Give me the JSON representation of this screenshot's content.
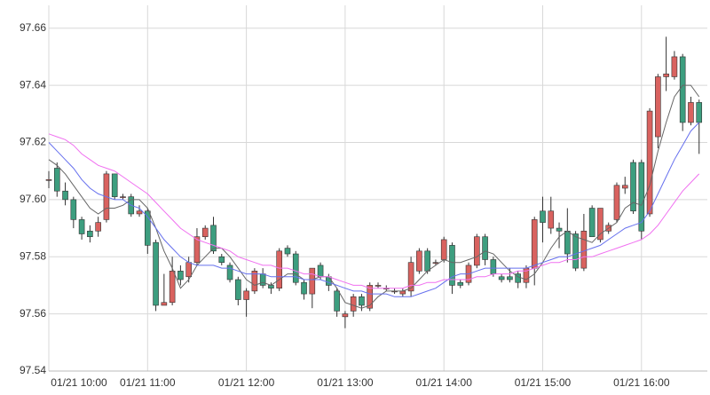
{
  "chart_data": {
    "type": "candlestick",
    "x": [
      "01/21 10:00",
      "01/21 10:05",
      "01/21 10:10",
      "01/21 10:15",
      "01/21 10:20",
      "01/21 10:25",
      "01/21 10:30",
      "01/21 10:35",
      "01/21 10:40",
      "01/21 10:45",
      "01/21 10:50",
      "01/21 10:55",
      "01/21 11:00",
      "01/21 11:05",
      "01/21 11:10",
      "01/21 11:15",
      "01/21 11:20",
      "01/21 11:25",
      "01/21 11:30",
      "01/21 11:35",
      "01/21 11:40",
      "01/21 11:45",
      "01/21 11:50",
      "01/21 11:55",
      "01/21 12:00",
      "01/21 12:05",
      "01/21 12:10",
      "01/21 12:15",
      "01/21 12:20",
      "01/21 12:25",
      "01/21 12:30",
      "01/21 12:35",
      "01/21 12:40",
      "01/21 12:45",
      "01/21 12:50",
      "01/21 12:55",
      "01/21 13:00",
      "01/21 13:05",
      "01/21 13:10",
      "01/21 13:15",
      "01/21 13:20",
      "01/21 13:25",
      "01/21 13:30",
      "01/21 13:35",
      "01/21 13:40",
      "01/21 13:45",
      "01/21 13:50",
      "01/21 13:55",
      "01/21 14:00",
      "01/21 14:05",
      "01/21 14:10",
      "01/21 14:15",
      "01/21 14:20",
      "01/21 14:25",
      "01/21 14:30",
      "01/21 14:35",
      "01/21 14:40",
      "01/21 14:45",
      "01/21 14:50",
      "01/21 14:55",
      "01/21 15:00",
      "01/21 15:05",
      "01/21 15:10",
      "01/21 15:15",
      "01/21 15:20",
      "01/21 15:25",
      "01/21 15:30",
      "01/21 15:35",
      "01/21 15:40",
      "01/21 15:45",
      "01/21 15:50",
      "01/21 15:55",
      "01/21 16:00",
      "01/21 16:05",
      "01/21 16:10",
      "01/21 16:15",
      "01/21 16:20",
      "01/21 16:25",
      "01/21 16:30",
      "01/21 16:35"
    ],
    "open": [
      97.607,
      97.611,
      97.603,
      97.6,
      97.593,
      97.589,
      97.589,
      97.593,
      97.609,
      97.601,
      97.601,
      97.595,
      97.596,
      97.585,
      97.563,
      97.564,
      97.575,
      97.573,
      97.578,
      97.587,
      97.591,
      97.58,
      97.577,
      97.572,
      97.565,
      97.568,
      97.574,
      97.57,
      97.569,
      97.583,
      97.581,
      97.571,
      97.567,
      97.577,
      97.573,
      97.568,
      97.559,
      97.561,
      97.566,
      97.562,
      97.57,
      97.569,
      97.568,
      97.567,
      97.568,
      97.575,
      97.582,
      97.578,
      97.579,
      97.584,
      97.571,
      97.571,
      97.577,
      97.587,
      97.579,
      97.573,
      97.573,
      97.574,
      97.571,
      97.576,
      97.596,
      97.59,
      97.59,
      97.589,
      97.588,
      97.576,
      97.597,
      97.586,
      97.589,
      97.593,
      97.604,
      97.613,
      97.613,
      97.595,
      97.622,
      97.643,
      97.643,
      97.65,
      97.627,
      97.634
    ],
    "high": [
      97.61,
      97.613,
      97.606,
      97.601,
      97.594,
      97.591,
      97.594,
      97.61,
      97.609,
      97.602,
      97.602,
      97.598,
      97.597,
      97.586,
      97.574,
      97.58,
      97.577,
      97.58,
      97.59,
      97.591,
      97.594,
      97.581,
      97.578,
      97.573,
      97.569,
      97.576,
      97.576,
      97.571,
      97.583,
      97.584,
      97.582,
      97.572,
      97.576,
      97.578,
      97.574,
      97.569,
      97.561,
      97.567,
      97.567,
      97.571,
      97.571,
      97.57,
      97.569,
      97.569,
      97.58,
      97.583,
      97.583,
      97.579,
      97.587,
      97.585,
      97.572,
      97.578,
      97.588,
      97.588,
      97.58,
      97.574,
      97.576,
      97.575,
      97.577,
      97.594,
      97.601,
      97.601,
      97.592,
      97.597,
      97.589,
      97.595,
      97.598,
      97.597,
      97.592,
      97.606,
      97.608,
      97.614,
      97.614,
      97.632,
      97.644,
      97.657,
      97.652,
      97.651,
      97.636,
      97.635
    ],
    "low": [
      97.604,
      97.601,
      97.598,
      97.59,
      97.586,
      97.585,
      97.587,
      97.592,
      97.6,
      97.6,
      97.594,
      97.594,
      97.581,
      97.561,
      97.563,
      97.563,
      97.57,
      97.571,
      97.577,
      97.586,
      97.581,
      97.577,
      97.571,
      97.563,
      97.559,
      97.567,
      97.569,
      97.567,
      97.568,
      97.58,
      97.57,
      97.565,
      97.562,
      97.572,
      97.568,
      97.559,
      97.555,
      97.559,
      97.561,
      97.561,
      97.569,
      97.568,
      97.567,
      97.566,
      97.566,
      97.574,
      97.574,
      97.577,
      97.578,
      97.567,
      97.569,
      97.57,
      97.576,
      97.577,
      97.573,
      97.571,
      97.571,
      97.569,
      97.569,
      97.57,
      97.585,
      97.588,
      97.583,
      97.578,
      97.575,
      97.575,
      97.587,
      97.585,
      97.588,
      97.592,
      97.602,
      97.595,
      97.586,
      97.594,
      97.618,
      97.638,
      97.642,
      97.624,
      97.626,
      97.616
    ],
    "close": [
      97.607,
      97.603,
      97.6,
      97.593,
      97.588,
      97.587,
      97.592,
      97.609,
      97.601,
      97.601,
      97.595,
      97.596,
      97.584,
      97.563,
      97.564,
      97.575,
      97.572,
      97.578,
      97.587,
      97.59,
      97.582,
      97.578,
      97.572,
      97.565,
      97.568,
      97.575,
      97.57,
      97.569,
      97.582,
      97.581,
      97.571,
      97.567,
      97.576,
      97.573,
      97.57,
      97.561,
      97.56,
      97.566,
      97.563,
      97.57,
      97.57,
      97.569,
      97.568,
      97.568,
      97.578,
      97.582,
      97.575,
      97.578,
      97.586,
      97.57,
      97.57,
      97.577,
      97.587,
      97.579,
      97.574,
      97.572,
      97.572,
      97.571,
      97.576,
      97.593,
      97.592,
      97.596,
      97.589,
      97.581,
      97.576,
      97.589,
      97.587,
      97.597,
      97.591,
      97.605,
      97.605,
      97.596,
      97.589,
      97.631,
      97.643,
      97.644,
      97.65,
      97.627,
      97.634,
      97.627
    ],
    "up_color": "#d9625f",
    "down_color": "#3d9e7f",
    "series": [
      {
        "color": "#666666",
        "values": [
          97.614,
          97.612,
          97.609,
          97.605,
          97.601,
          97.597,
          97.595,
          97.597,
          97.597,
          97.598,
          97.6,
          97.6,
          97.597,
          97.59,
          97.582,
          97.576,
          97.569,
          97.572,
          97.577,
          97.58,
          97.583,
          97.583,
          97.58,
          97.576,
          97.572,
          97.57,
          97.571,
          97.57,
          97.572,
          97.574,
          97.574,
          97.572,
          97.572,
          97.573,
          97.573,
          97.569,
          97.564,
          97.563,
          97.562,
          97.563,
          97.566,
          97.568,
          97.568,
          97.568,
          97.569,
          97.572,
          97.575,
          97.577,
          97.579,
          97.578,
          97.578,
          97.579,
          97.58,
          97.582,
          97.581,
          97.578,
          97.575,
          97.573,
          97.572,
          97.574,
          97.578,
          97.583,
          97.587,
          97.589,
          97.587,
          97.586,
          97.585,
          97.588,
          97.59,
          97.592,
          97.597,
          97.599,
          97.598,
          97.605,
          97.617,
          97.627,
          97.636,
          97.64,
          97.64,
          97.636
        ]
      },
      {
        "color": "#6670ee",
        "values": [
          97.62,
          97.617,
          97.614,
          97.611,
          97.607,
          97.604,
          97.602,
          97.601,
          97.6,
          97.6,
          97.598,
          97.597,
          97.594,
          97.59,
          97.586,
          97.583,
          97.58,
          97.578,
          97.577,
          97.577,
          97.577,
          97.576,
          97.576,
          97.575,
          97.574,
          97.574,
          97.574,
          97.573,
          97.573,
          97.573,
          97.573,
          97.572,
          97.572,
          97.572,
          97.571,
          97.57,
          97.569,
          97.568,
          97.568,
          97.567,
          97.567,
          97.567,
          97.566,
          97.566,
          97.566,
          97.567,
          97.568,
          97.569,
          97.571,
          97.573,
          97.574,
          97.574,
          97.575,
          97.576,
          97.576,
          97.576,
          97.576,
          97.576,
          97.576,
          97.577,
          97.578,
          97.579,
          97.58,
          97.58,
          97.581,
          97.582,
          97.583,
          97.584,
          97.586,
          97.588,
          97.59,
          97.591,
          97.592,
          97.596,
          97.602,
          97.608,
          97.614,
          97.619,
          97.624,
          97.627
        ]
      },
      {
        "color": "#f070f0",
        "values": [
          97.623,
          97.622,
          97.621,
          97.619,
          97.616,
          97.614,
          97.612,
          97.611,
          97.61,
          97.608,
          97.606,
          97.604,
          97.602,
          97.599,
          97.596,
          97.593,
          97.59,
          97.588,
          97.586,
          97.585,
          97.584,
          97.583,
          97.582,
          97.58,
          97.579,
          97.578,
          97.577,
          97.577,
          97.576,
          97.576,
          97.575,
          97.574,
          97.574,
          97.573,
          97.573,
          97.572,
          97.571,
          97.57,
          97.57,
          97.569,
          97.569,
          97.569,
          97.569,
          97.569,
          97.57,
          97.57,
          97.571,
          97.571,
          97.572,
          97.572,
          97.572,
          97.572,
          97.573,
          97.573,
          97.574,
          97.574,
          97.574,
          97.575,
          97.575,
          97.576,
          97.577,
          97.578,
          97.578,
          97.579,
          97.579,
          97.58,
          97.58,
          97.581,
          97.582,
          97.583,
          97.584,
          97.585,
          97.586,
          97.588,
          97.591,
          97.595,
          97.599,
          97.603,
          97.606,
          97.609
        ]
      }
    ],
    "xlim": [
      "01/21 10:00",
      "01/21 16:40"
    ],
    "xticks": [
      "01/21 10:00",
      "01/21 11:00",
      "01/21 12:00",
      "01/21 13:00",
      "01/21 14:00",
      "01/21 15:00",
      "01/21 16:00"
    ],
    "ylim": [
      97.54,
      97.668
    ],
    "yticks": [
      97.54,
      97.56,
      97.58,
      {
        "value": 97.6,
        "label": "97.60"
      },
      97.62,
      97.64,
      97.66
    ],
    "grid": true
  }
}
